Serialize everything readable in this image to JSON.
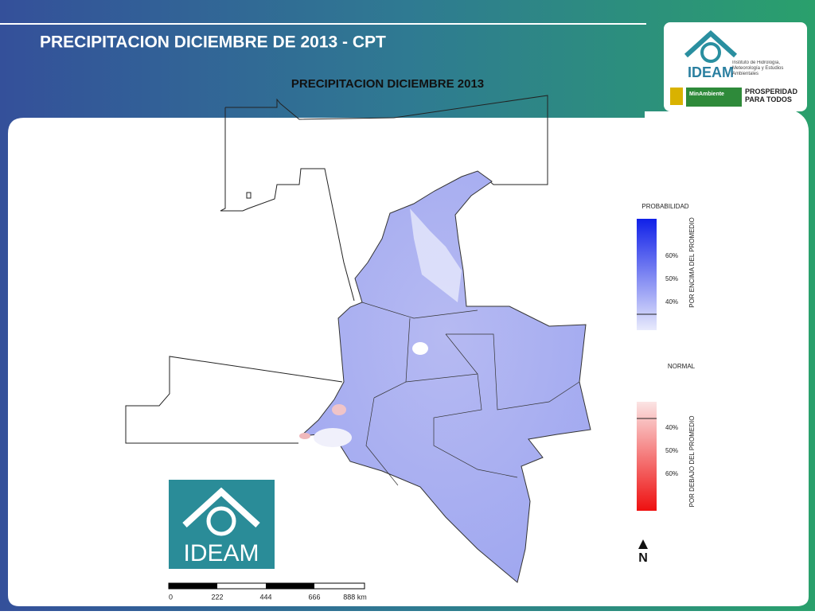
{
  "header": {
    "title": "PRECIPITACION DICIEMBRE DE 2013 - CPT"
  },
  "logo": {
    "name": "IDEAM",
    "institute": "Instituto de Hidrología, Meteorología y Estudios Ambientales",
    "ministry": "MinAmbiente",
    "slogan": "PROSPERIDAD PARA TODOS"
  },
  "map": {
    "title": "PRECIPITACION DICIEMBRE 2013",
    "legend": {
      "heading": "PROBABILIDAD",
      "above": "POR ENCIMA DEL PROMEDIO",
      "above_ticks": [
        "60%",
        "50%",
        "40%"
      ],
      "normal": "NORMAL",
      "below": "POR DEBAJO DEL PROMEDIO",
      "below_ticks": [
        "40%",
        "50%",
        "60%"
      ]
    },
    "north": "N",
    "scale": [
      "0",
      "222",
      "444",
      "666",
      "888 km"
    ]
  },
  "badge": {
    "name": "IDEAM"
  }
}
